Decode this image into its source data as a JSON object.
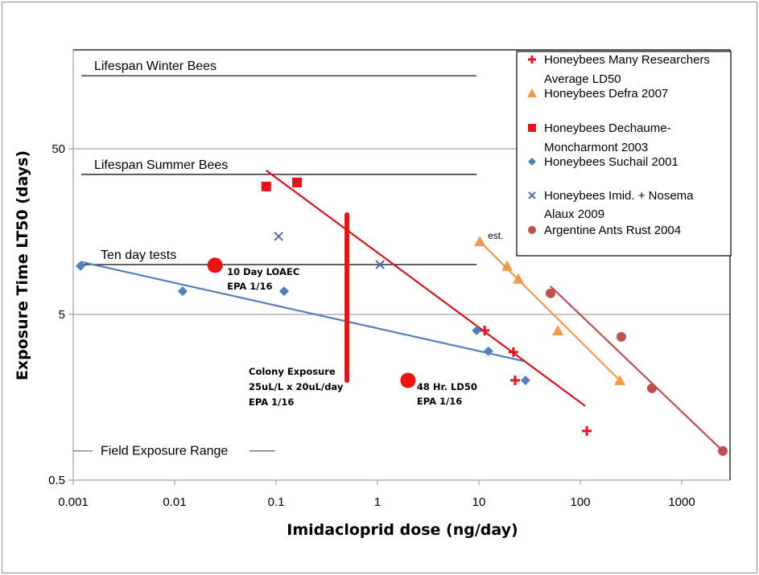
{
  "chart_data": {
    "type": "scatter",
    "title": "",
    "xlabel": "Imidacloprid dose (ng/day)",
    "ylabel": "Exposure Time LT50 (days)",
    "xscale": "log",
    "yscale": "log",
    "xlim": [
      0.001,
      3000
    ],
    "ylim": [
      0.5,
      220
    ],
    "xticks": [
      {
        "value": 0.001,
        "label": "0.001"
      },
      {
        "value": 0.01,
        "label": "0.01"
      },
      {
        "value": 0.1,
        "label": "0.1"
      },
      {
        "value": 1,
        "label": "1"
      },
      {
        "value": 10,
        "label": "10"
      },
      {
        "value": 100,
        "label": "100"
      },
      {
        "value": 1000,
        "label": "1000"
      }
    ],
    "yticks": [
      {
        "value": 0.5,
        "label": "0.5"
      },
      {
        "value": 5,
        "label": "5"
      },
      {
        "value": 50,
        "label": "50"
      }
    ],
    "grid": "horizontal major",
    "legend_position": "top-right",
    "series": [
      {
        "name": "Honeybees Many Researchers Average LD50",
        "legend_lines": [
          "Honeybees Many Researchers",
          "Average LD50"
        ],
        "marker": "plus",
        "color": "#e8131b",
        "points": [
          [
            11.4,
            4.0
          ],
          [
            21.9,
            2.96
          ],
          [
            22.8,
            2.0
          ],
          [
            116,
            0.99
          ]
        ]
      },
      {
        "name": "Honeybees Defra 2007",
        "legend_lines": [
          "Honeybees Defra 2007"
        ],
        "marker": "triangle",
        "color": "#f59a4a",
        "points": [
          [
            10.2,
            13.8
          ],
          [
            19,
            9.8
          ],
          [
            24.5,
            8.2
          ],
          [
            60,
            4.0
          ],
          [
            245,
            2.0
          ]
        ],
        "trend": [
          [
            10.2,
            13.8
          ],
          [
            245,
            2.0
          ]
        ]
      },
      {
        "name": "Honeybees Dechaume-Moncharmont 2003",
        "legend_lines": [
          "Honeybees  Dechaume-",
          "Moncharmont 2003"
        ],
        "marker": "square",
        "color": "#e8131b",
        "points": [
          [
            0.08,
            29.6
          ],
          [
            0.161,
            31.3
          ]
        ]
      },
      {
        "name": "Honeybees Suchail 2001",
        "legend_lines": [
          "Honeybees  Suchail 2001"
        ],
        "marker": "diamond",
        "color": "#4f81bd",
        "points": [
          [
            0.00118,
            9.8
          ],
          [
            0.012,
            6.9
          ],
          [
            0.12,
            6.9
          ],
          [
            9.5,
            4.0
          ],
          [
            12.4,
            3.0
          ],
          [
            28.8,
            2.0
          ]
        ],
        "trend": [
          [
            0.00118,
            10.4
          ],
          [
            28.8,
            2.6
          ]
        ]
      },
      {
        "name": "Honeybees Imid. + Nosema Alaux 2009",
        "legend_lines": [
          "Honeybees Imid. + Nosema",
          "Alaux 2009"
        ],
        "marker": "x",
        "color": "#4f6fa0",
        "points": [
          [
            0.106,
            14.8
          ],
          [
            1.06,
            10.0
          ]
        ]
      },
      {
        "name": "Argentine Ants Rust 2004",
        "legend_lines": [
          "Argentine Ants  Rust 2004"
        ],
        "marker": "circle",
        "color": "#c0504d",
        "points": [
          [
            50.8,
            6.7
          ],
          [
            254,
            3.66
          ],
          [
            508,
            1.79
          ],
          [
            2540,
            0.75
          ]
        ],
        "trend": [
          [
            50.8,
            7.4
          ],
          [
            2540,
            0.75
          ]
        ]
      }
    ],
    "extra_lines": [
      {
        "name": "red-ld50-trend",
        "color": "#d8141c",
        "points": [
          [
            0.08,
            37
          ],
          [
            112,
            1.4
          ]
        ]
      }
    ],
    "reference_lines": [
      {
        "label": "Lifespan Winter Bees",
        "y": 138,
        "x_from": 0.0012,
        "x_to": 9.5
      },
      {
        "label": "Lifespan Summer Bees",
        "y": 35,
        "x_from": 0.0012,
        "x_to": 9.5
      },
      {
        "label": "Ten day tests",
        "y": 10,
        "x_from": 0.0012,
        "x_to": 9.5
      }
    ],
    "field_exposure": {
      "label": "Field Exposure  Range",
      "y": 0.75
    },
    "epa_markers": [
      {
        "label_lines": [
          "10 Day LOAEC",
          "EPA 1/16"
        ],
        "x": 0.025,
        "y": 9.9
      },
      {
        "label_lines": [
          "48 Hr. LD50",
          "EPA 1/16"
        ],
        "x": 2.0,
        "y": 2.0
      }
    ],
    "colony_exposure": {
      "label_lines": [
        "Colony Exposure",
        "25uL/L x 20uL/day",
        "EPA 1/16"
      ],
      "x": 0.5,
      "y_from": 2.0,
      "y_to": 20
    },
    "annotations": [
      {
        "text": "est.",
        "x": 10.2,
        "y": 13.8
      }
    ]
  }
}
